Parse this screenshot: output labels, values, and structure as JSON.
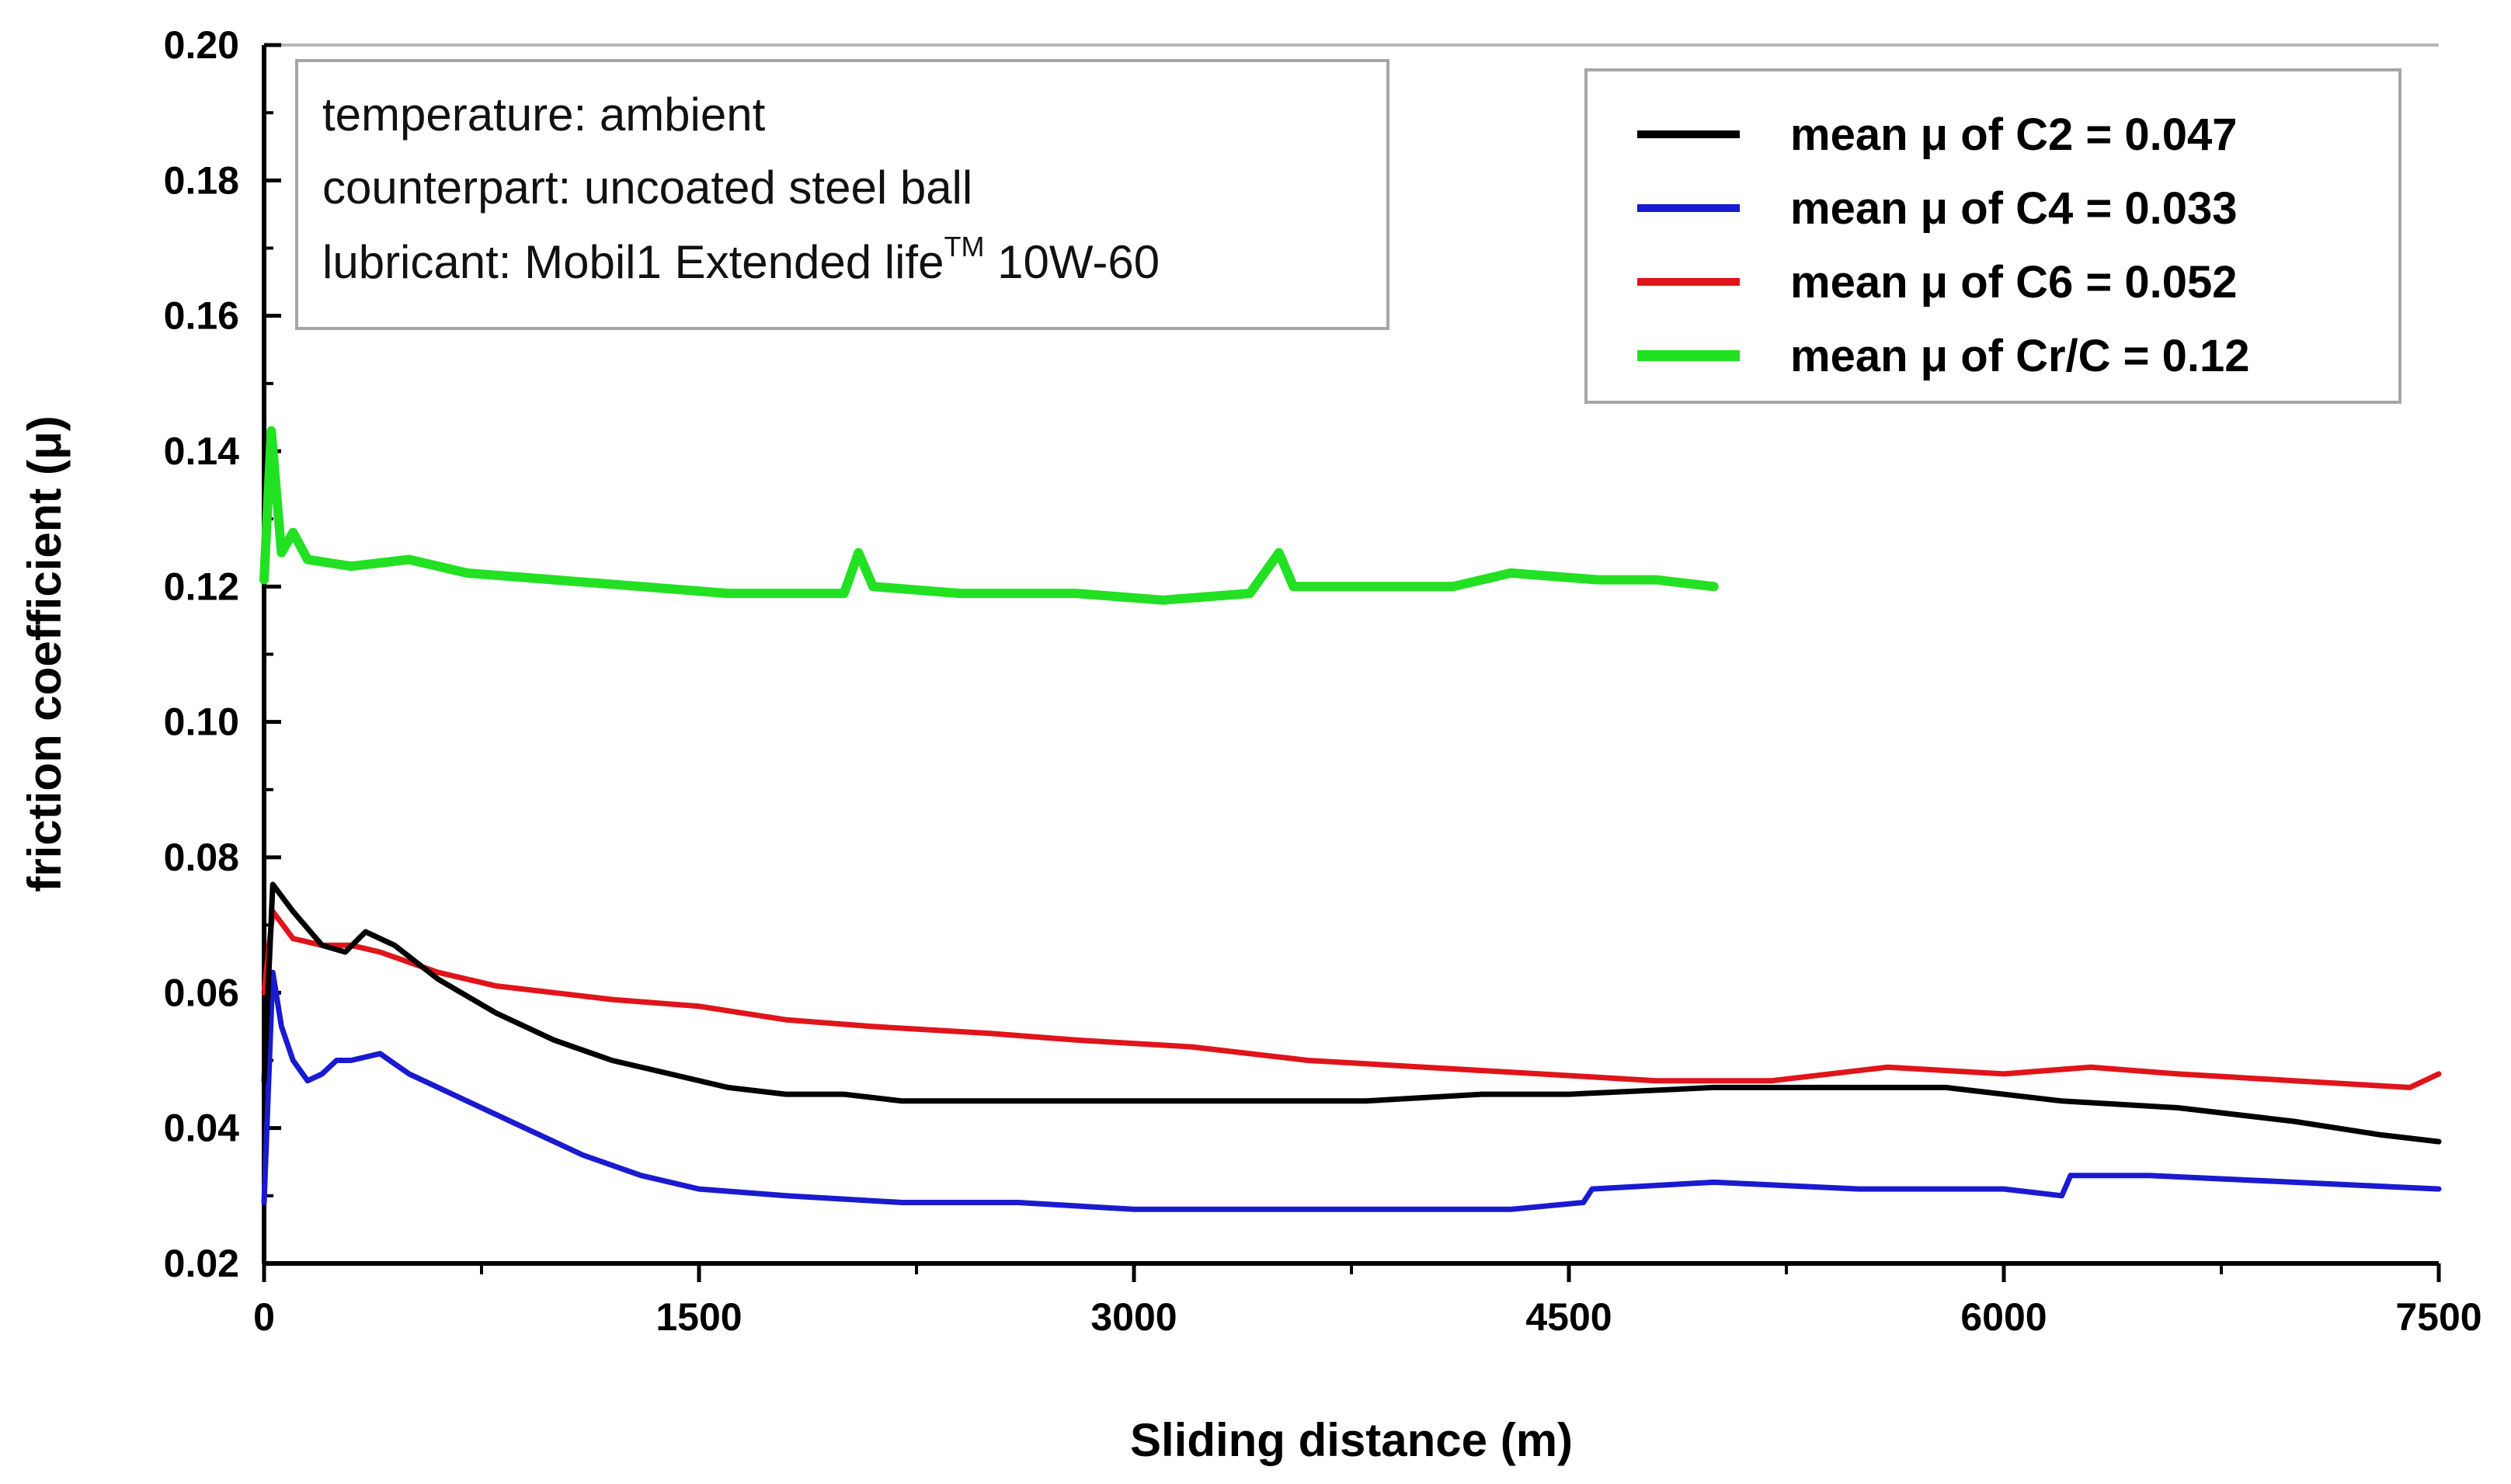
{
  "chart_data": {
    "type": "line",
    "title": "",
    "xlabel": "Sliding distance (m)",
    "ylabel": "friction coefficient (μ)",
    "xlim": [
      0,
      7500
    ],
    "ylim": [
      0.02,
      0.2
    ],
    "x_ticks": [
      0,
      1500,
      3000,
      4500,
      6000,
      7500
    ],
    "x_tick_labels": [
      "0",
      "1500",
      "3000",
      "4500",
      "6000",
      "7500"
    ],
    "y_ticks": [
      0.02,
      0.04,
      0.06,
      0.08,
      0.1,
      0.12,
      0.14,
      0.16,
      0.18,
      0.2
    ],
    "y_tick_labels": [
      "0.02",
      "0.04",
      "0.06",
      "0.08",
      "0.10",
      "0.12",
      "0.14",
      "0.16",
      "0.18",
      "0.20"
    ],
    "annotation": {
      "line1": "temperature: ambient",
      "line2": "counterpart: uncoated steel ball",
      "line3_main": "lubricant: Mobil1 Extended life",
      "line3_sup": "TM",
      "line3_end": " 10W-60"
    },
    "legend_position": "top-right",
    "series": [
      {
        "name": "mean μ of C2 = 0.047",
        "color": "#000000",
        "x": [
          0,
          30,
          100,
          200,
          280,
          350,
          450,
          600,
          800,
          1000,
          1200,
          1400,
          1600,
          1800,
          2000,
          2200,
          2400,
          2600,
          2800,
          3000,
          3200,
          3500,
          3800,
          4200,
          4500,
          5000,
          5400,
          5800,
          6200,
          6600,
          7000,
          7300,
          7500
        ],
        "values": [
          0.047,
          0.076,
          0.072,
          0.067,
          0.066,
          0.069,
          0.067,
          0.062,
          0.057,
          0.053,
          0.05,
          0.048,
          0.046,
          0.045,
          0.045,
          0.044,
          0.044,
          0.044,
          0.044,
          0.044,
          0.044,
          0.044,
          0.044,
          0.045,
          0.045,
          0.046,
          0.046,
          0.046,
          0.044,
          0.043,
          0.041,
          0.039,
          0.038
        ]
      },
      {
        "name": "mean μ of C4 = 0.033",
        "color": "#1a1ad0",
        "x": [
          0,
          30,
          60,
          100,
          150,
          200,
          250,
          300,
          400,
          500,
          700,
          900,
          1100,
          1300,
          1500,
          1800,
          2200,
          2600,
          3000,
          3400,
          3800,
          4300,
          4550,
          4580,
          5000,
          5500,
          6000,
          6200,
          6230,
          6500,
          7000,
          7500
        ],
        "values": [
          0.029,
          0.063,
          0.055,
          0.05,
          0.047,
          0.048,
          0.05,
          0.05,
          0.051,
          0.048,
          0.044,
          0.04,
          0.036,
          0.033,
          0.031,
          0.03,
          0.029,
          0.029,
          0.028,
          0.028,
          0.028,
          0.028,
          0.029,
          0.031,
          0.032,
          0.031,
          0.031,
          0.03,
          0.033,
          0.033,
          0.032,
          0.031
        ]
      },
      {
        "name": "mean μ of C6 = 0.052",
        "color": "#e0141a",
        "x": [
          0,
          30,
          100,
          200,
          300,
          400,
          600,
          800,
          1000,
          1200,
          1500,
          1800,
          2100,
          2500,
          2800,
          3200,
          3600,
          4000,
          4400,
          4800,
          5200,
          5600,
          6000,
          6300,
          6600,
          7000,
          7400,
          7500
        ],
        "values": [
          0.06,
          0.072,
          0.068,
          0.067,
          0.067,
          0.066,
          0.063,
          0.061,
          0.06,
          0.059,
          0.058,
          0.056,
          0.055,
          0.054,
          0.053,
          0.052,
          0.05,
          0.049,
          0.048,
          0.047,
          0.047,
          0.049,
          0.048,
          0.049,
          0.048,
          0.047,
          0.046,
          0.048
        ]
      },
      {
        "name": "mean μ of Cr/C = 0.12",
        "color": "#22e022",
        "x": [
          0,
          25,
          60,
          100,
          150,
          300,
          500,
          700,
          1000,
          1300,
          1600,
          2000,
          2050,
          2100,
          2400,
          2800,
          3100,
          3400,
          3500,
          3550,
          3600,
          3800,
          4100,
          4300,
          4600,
          4800,
          5000
        ],
        "values": [
          0.121,
          0.143,
          0.125,
          0.128,
          0.124,
          0.123,
          0.124,
          0.122,
          0.121,
          0.12,
          0.119,
          0.119,
          0.125,
          0.12,
          0.119,
          0.119,
          0.118,
          0.119,
          0.125,
          0.12,
          0.12,
          0.12,
          0.12,
          0.122,
          0.121,
          0.121,
          0.12
        ]
      }
    ]
  }
}
